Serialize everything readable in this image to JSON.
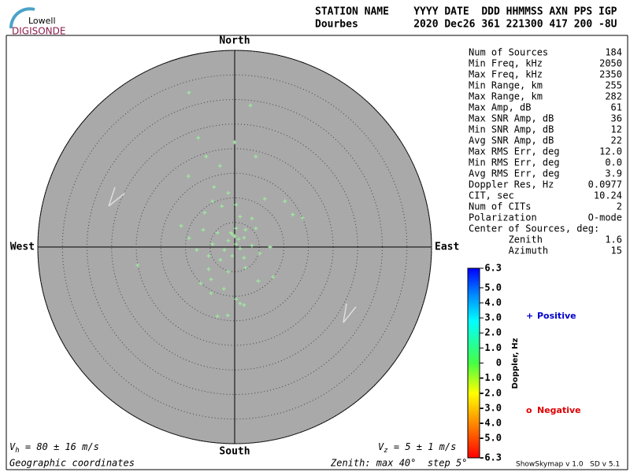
{
  "logo": {
    "top": "Lowell",
    "bottom": "DIGISONDE"
  },
  "header": {
    "line1": "STATION NAME    YYYY DATE  DDD HHMMSS AXN PPS IGP",
    "line2": "Dourbes         2020 Dec26 361 221300 417 200 -8U"
  },
  "stats": [
    {
      "label": "Num of Sources",
      "value": "184"
    },
    {
      "label": "Min Freq, kHz",
      "value": "2050"
    },
    {
      "label": "Max Freq, kHz",
      "value": "2350"
    },
    {
      "label": "Min Range, km",
      "value": "255"
    },
    {
      "label": "Max Range, km",
      "value": "282"
    },
    {
      "label": "Max Amp, dB",
      "value": "61"
    },
    {
      "label": "Max SNR Amp, dB",
      "value": "36"
    },
    {
      "label": "Min SNR Amp, dB",
      "value": "12"
    },
    {
      "label": "Avg SNR Amp, dB",
      "value": "22"
    },
    {
      "label": "Max RMS Err, deg",
      "value": "12.0"
    },
    {
      "label": "Min RMS Err, deg",
      "value": "0.0"
    },
    {
      "label": "Avg RMS Err, deg",
      "value": "3.9"
    },
    {
      "label": "Doppler Res, Hz",
      "value": "0.0977"
    },
    {
      "label": "CIT, sec",
      "value": "10.24"
    },
    {
      "label": "Num of CITs",
      "value": "2"
    },
    {
      "label": "Polarization",
      "value": "O-mode"
    },
    {
      "label": "Center of Sources, deg:"
    },
    {
      "label": "       Zenith",
      "value": "1.6"
    },
    {
      "label": "       Azimuth",
      "value": "15"
    }
  ],
  "chart_data": {
    "type": "polar_scatter",
    "directions": {
      "north": "North",
      "south": "South",
      "west": "West",
      "east": "East"
    },
    "rlim": [
      0,
      40
    ],
    "rticks": [
      5,
      10,
      15,
      20,
      25,
      30,
      35,
      40
    ],
    "series": [
      {
        "color": "#9cf59c",
        "x": [
          -9.3,
          3.2,
          0,
          -7.4,
          -5.8,
          4.3,
          -3.0,
          -9.4,
          -4.2,
          -1.3,
          -4.5,
          6.1,
          10.2,
          -2.6,
          0.3,
          11.8,
          13.8,
          -6.1,
          1.1,
          3.5,
          -10.9,
          -6.4,
          -3.5,
          -0.5,
          1.9,
          -1.3,
          0.3,
          -2.1,
          1.1,
          3.5,
          7.2,
          -9.3,
          -7.7,
          -5.3,
          -2.9,
          -0.5,
          1.9,
          5.1,
          -19.7,
          -5.3,
          -1.3,
          2.2,
          7.8,
          4.8,
          -4.8,
          -2.2,
          0.3,
          1.9,
          -3.5,
          -1.4,
          1.1,
          -6.9,
          -4.8,
          -0.8,
          0.3,
          2.2,
          4.3,
          -4.5,
          0,
          0.8
        ],
        "y": [
          31.4,
          28.8,
          21.3,
          22.2,
          18.4,
          18.4,
          16.5,
          14.4,
          12.2,
          11,
          9.3,
          9.8,
          9.3,
          8.3,
          8.6,
          6.6,
          5.9,
          7.0,
          6.2,
          5.8,
          4.3,
          3.5,
          2.9,
          2.6,
          1.9,
          1.3,
          0.6,
          -0.6,
          -0.3,
          0.3,
          0,
          1.8,
          -0.6,
          -1.8,
          -2.6,
          -1.8,
          -2.2,
          -1.3,
          -3.7,
          -4.5,
          -5,
          -4.2,
          -6.1,
          -6.9,
          -9.4,
          -8.5,
          -10.6,
          -11.8,
          -14.1,
          -13.9,
          -11.5,
          -7.4,
          -6.6,
          2.9,
          3.8,
          3.5,
          3.8,
          0.6,
          2.2,
          1.6
        ]
      }
    ],
    "colorbar": {
      "title": "Doppler, Hz",
      "lim": [
        -6.3,
        6.3
      ],
      "ticks": [
        6.3,
        {
          "value": 5,
          "label": "5.0"
        },
        {
          "value": 4,
          "label": "4.0"
        },
        {
          "value": 3,
          "label": "3.0"
        },
        {
          "value": 2,
          "label": "2.0"
        },
        {
          "value": 1,
          "label": "1.0"
        },
        0,
        {
          "value": -1,
          "label": "-1.0"
        },
        {
          "value": -2,
          "label": "-2.0"
        },
        {
          "value": -3,
          "label": "-3.0"
        },
        {
          "value": -4,
          "label": "-4.0"
        },
        {
          "value": -5,
          "label": "-5.0"
        },
        -6.3
      ]
    },
    "legend": [
      {
        "symbol": "+",
        "label": "Positive",
        "color": "#0000cc"
      },
      {
        "symbol": "o",
        "label": "Negative",
        "color": "#dd0000"
      }
    ]
  },
  "footer": {
    "vh": {
      "symbol": "V",
      "sub": "h",
      "text": " = 80 ± 16 m/s"
    },
    "vz": {
      "symbol": "V",
      "sub": "z",
      "text": " = 5 ± 1 m/s"
    },
    "coords": "Geographic coordinates",
    "zenith": "Zenith: max 40°  step 5°",
    "version": "ShowSkymap v 1.0   SD v 5.1"
  }
}
